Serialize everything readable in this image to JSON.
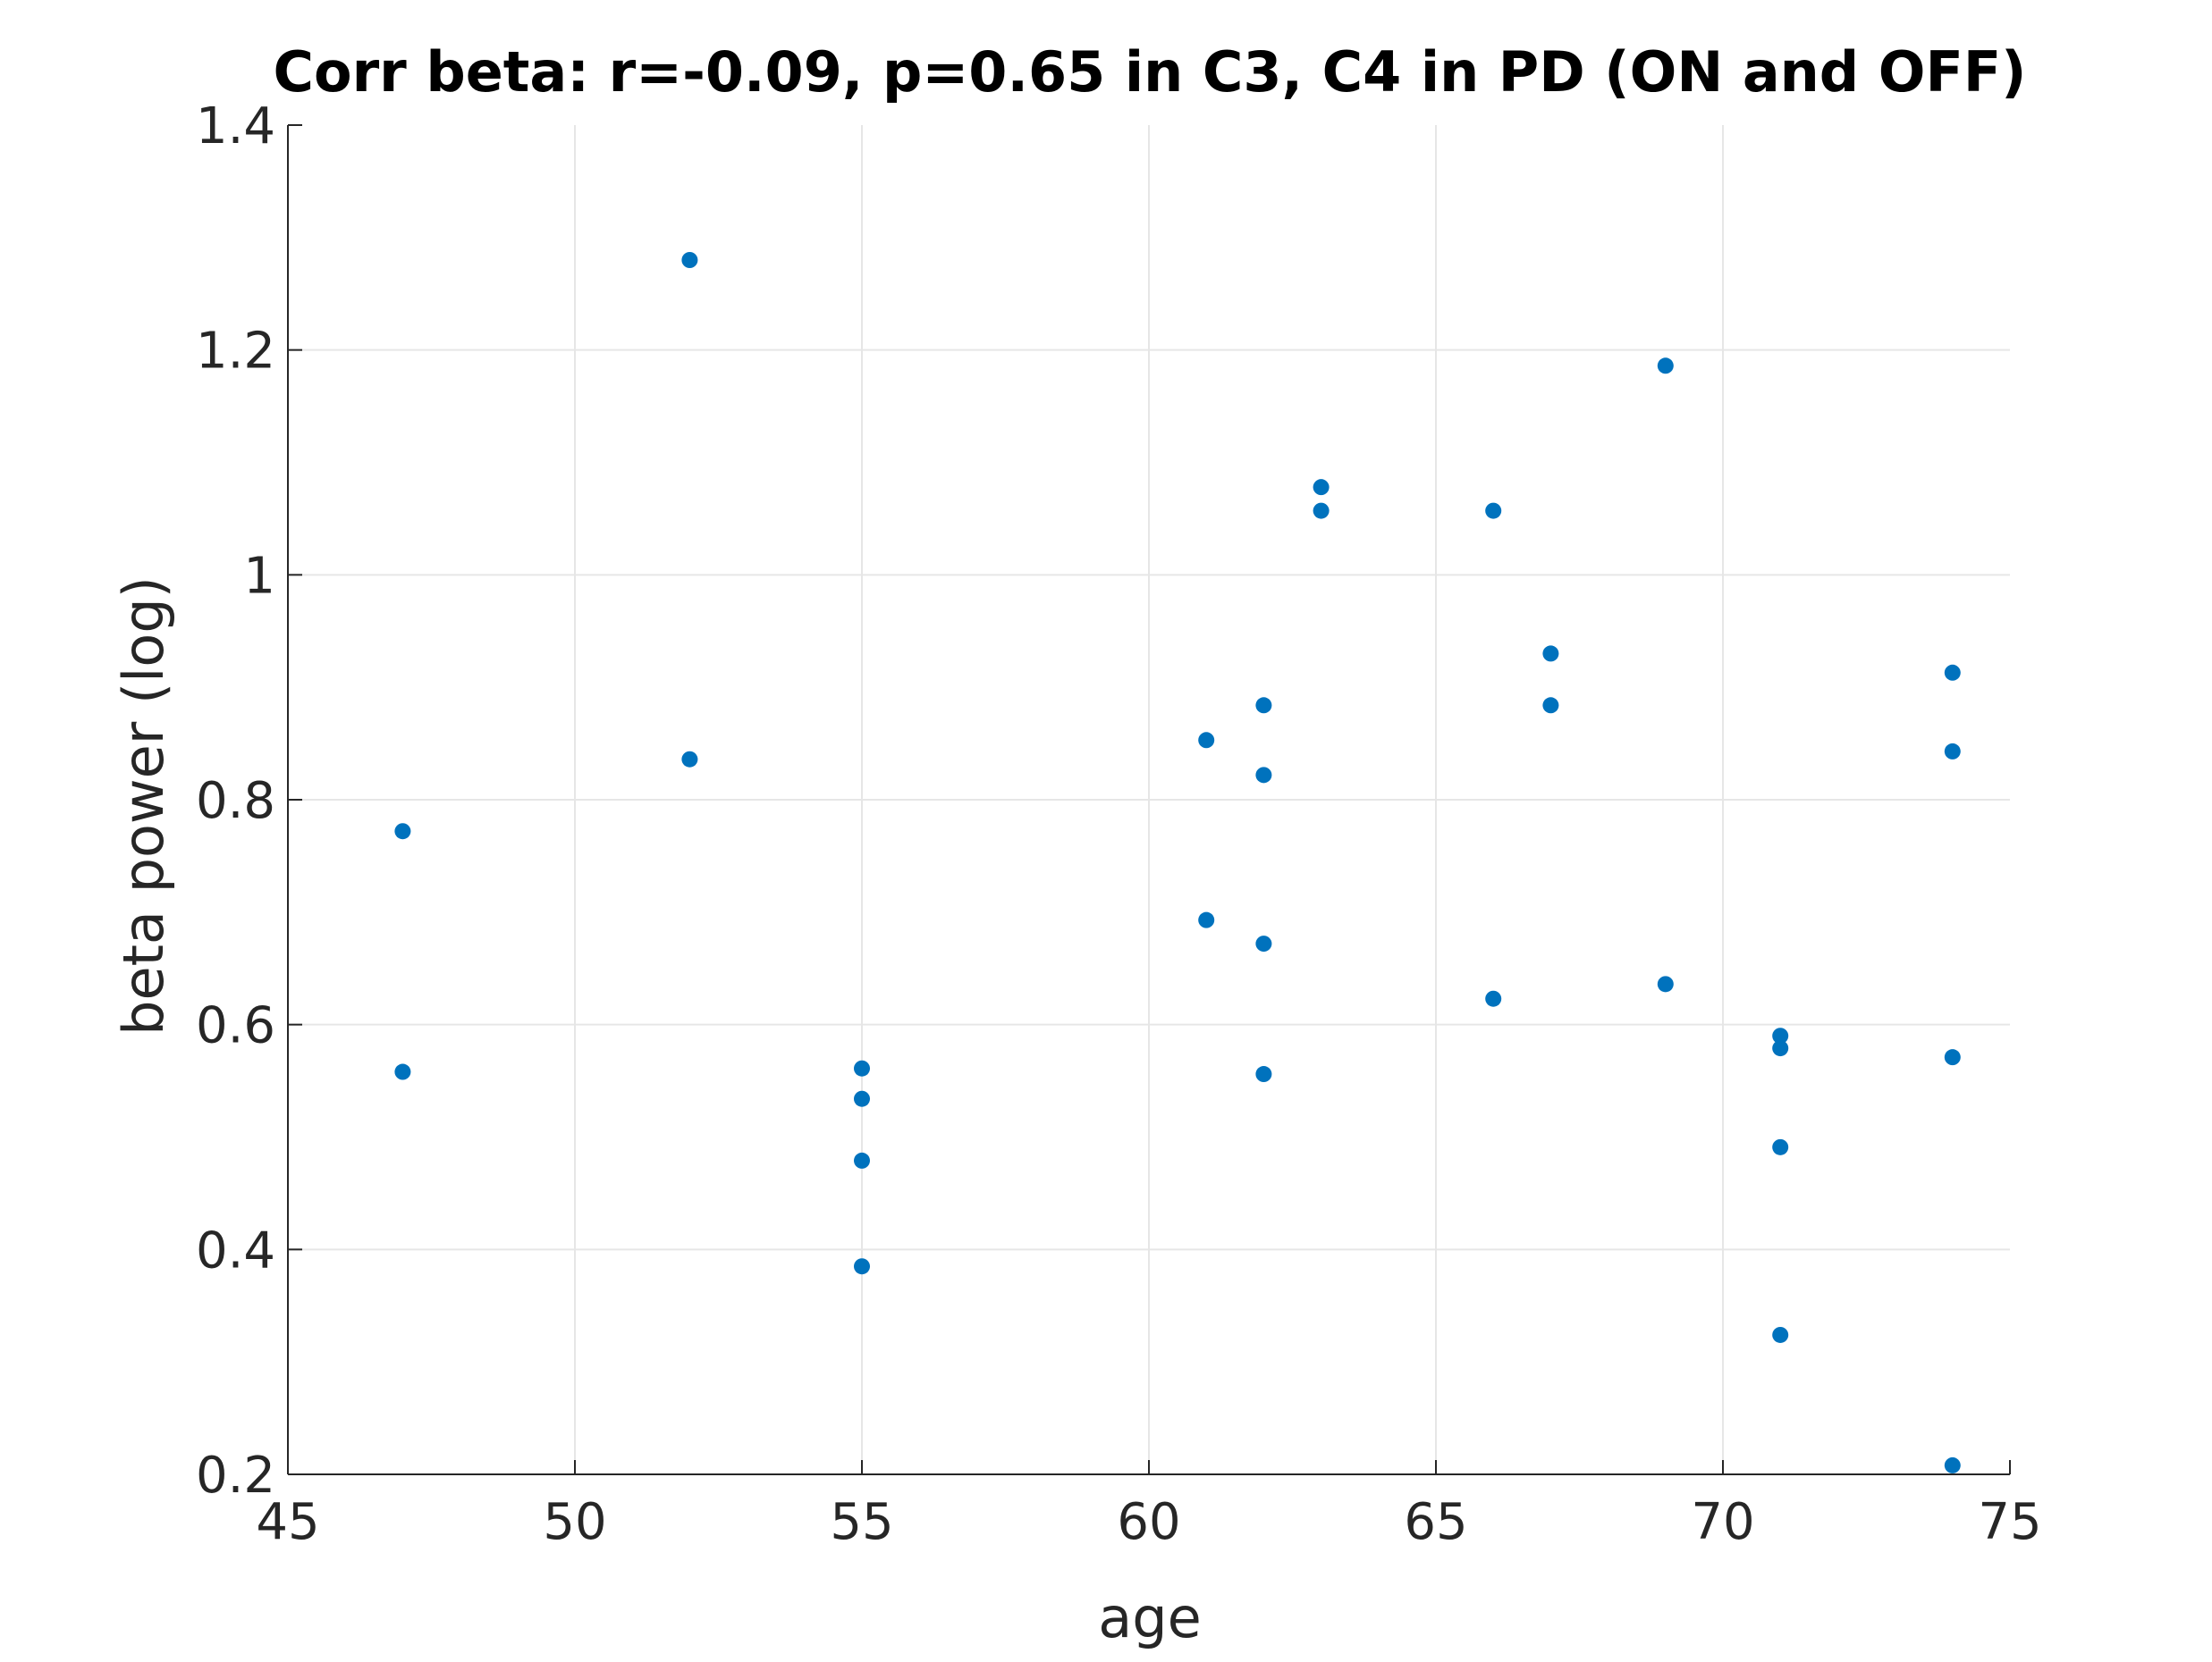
{
  "chart_data": {
    "type": "scatter",
    "title": "Corr beta: r=-0.09, p=0.65 in C3, C4 in PD (ON and OFF)",
    "xlabel": "age",
    "ylabel": "beta power (log)",
    "xlim": [
      45,
      75
    ],
    "ylim": [
      0.2,
      1.4
    ],
    "xticks": [
      45,
      50,
      55,
      60,
      65,
      70,
      75
    ],
    "yticks": [
      0.2,
      0.4,
      0.6,
      0.8,
      1,
      1.2,
      1.4
    ],
    "xtick_labels": [
      "45",
      "50",
      "55",
      "60",
      "65",
      "70",
      "75"
    ],
    "ytick_labels": [
      "0.2",
      "0.4",
      "0.6",
      "0.8",
      "1",
      "1.2",
      "1.4"
    ],
    "grid": true,
    "marker_color": "#0072BD",
    "points": [
      {
        "x": 47,
        "y": 0.772
      },
      {
        "x": 47,
        "y": 0.558
      },
      {
        "x": 52,
        "y": 1.28
      },
      {
        "x": 52,
        "y": 0.836
      },
      {
        "x": 55,
        "y": 0.561
      },
      {
        "x": 55,
        "y": 0.534
      },
      {
        "x": 55,
        "y": 0.479
      },
      {
        "x": 55,
        "y": 0.385
      },
      {
        "x": 61,
        "y": 0.853
      },
      {
        "x": 61,
        "y": 0.693
      },
      {
        "x": 62,
        "y": 0.884
      },
      {
        "x": 62,
        "y": 0.822
      },
      {
        "x": 62,
        "y": 0.672
      },
      {
        "x": 62,
        "y": 0.556
      },
      {
        "x": 63,
        "y": 1.078
      },
      {
        "x": 63,
        "y": 1.057
      },
      {
        "x": 66,
        "y": 1.057
      },
      {
        "x": 66,
        "y": 0.623
      },
      {
        "x": 67,
        "y": 0.93
      },
      {
        "x": 67,
        "y": 0.884
      },
      {
        "x": 69,
        "y": 1.186
      },
      {
        "x": 69,
        "y": 0.636
      },
      {
        "x": 71,
        "y": 0.59
      },
      {
        "x": 71,
        "y": 0.579
      },
      {
        "x": 71,
        "y": 0.491
      },
      {
        "x": 71,
        "y": 0.324
      },
      {
        "x": 74,
        "y": 0.913
      },
      {
        "x": 74,
        "y": 0.843
      },
      {
        "x": 74,
        "y": 0.571
      },
      {
        "x": 74,
        "y": 0.208
      }
    ]
  }
}
